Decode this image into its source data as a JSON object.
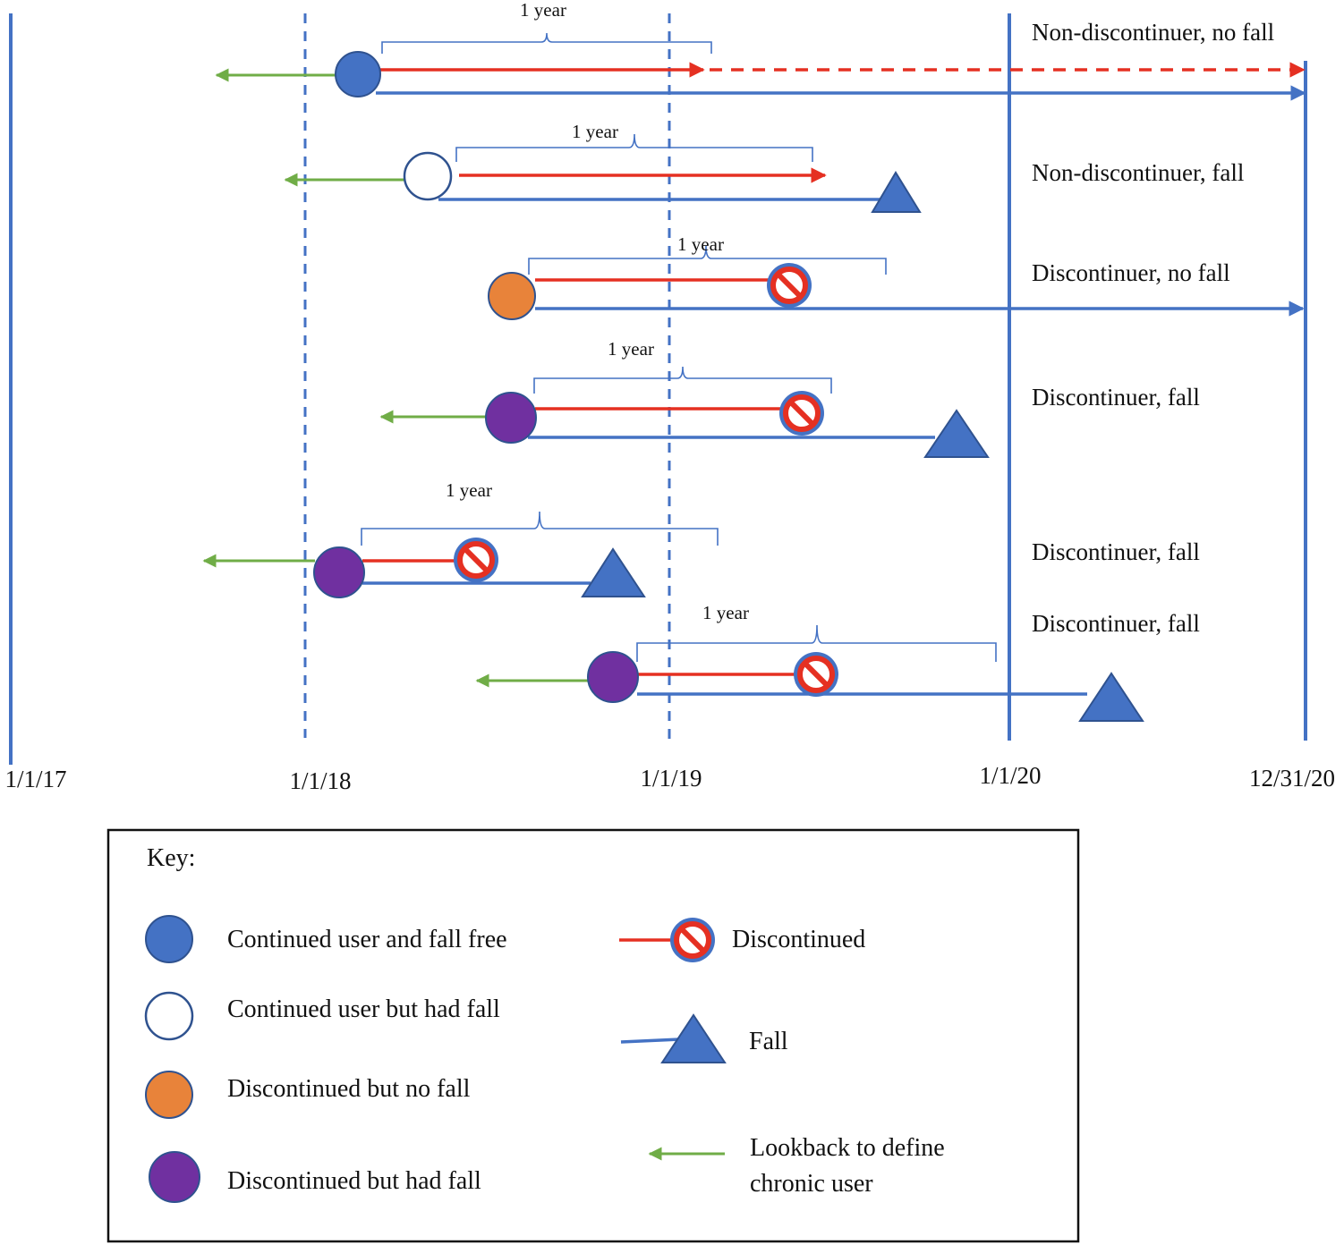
{
  "colors": {
    "blue": "#4472C4",
    "red": "#E53022",
    "green": "#70AD47",
    "orange": "#E8833A",
    "purple": "#7030A0",
    "white": "#FFFFFF"
  },
  "axis_dates": [
    "1/1/17",
    "1/1/18",
    "1/1/19",
    "1/1/20",
    "12/31/20"
  ],
  "bracket_label": "1 year",
  "row_labels": [
    "Non-discontinuer, no fall",
    "Non-discontinuer, fall",
    "Discontinuer, no fall",
    "Discontinuer, fall",
    "Discontinuer, fall",
    "Discontinuer, fall"
  ],
  "key": {
    "title": "Key:",
    "circles": [
      {
        "label": "Continued user and fall free",
        "color": "blue"
      },
      {
        "label": "Continued user but had fall",
        "color": "white"
      },
      {
        "label": "Discontinued but no fall",
        "color": "orange"
      },
      {
        "label": "Discontinued but had fall",
        "color": "purple"
      }
    ],
    "discontinued_label": "Discontinued",
    "fall_label": "Fall",
    "lookback_label_line1": "Lookback to define",
    "lookback_label_line2": "chronic user"
  }
}
